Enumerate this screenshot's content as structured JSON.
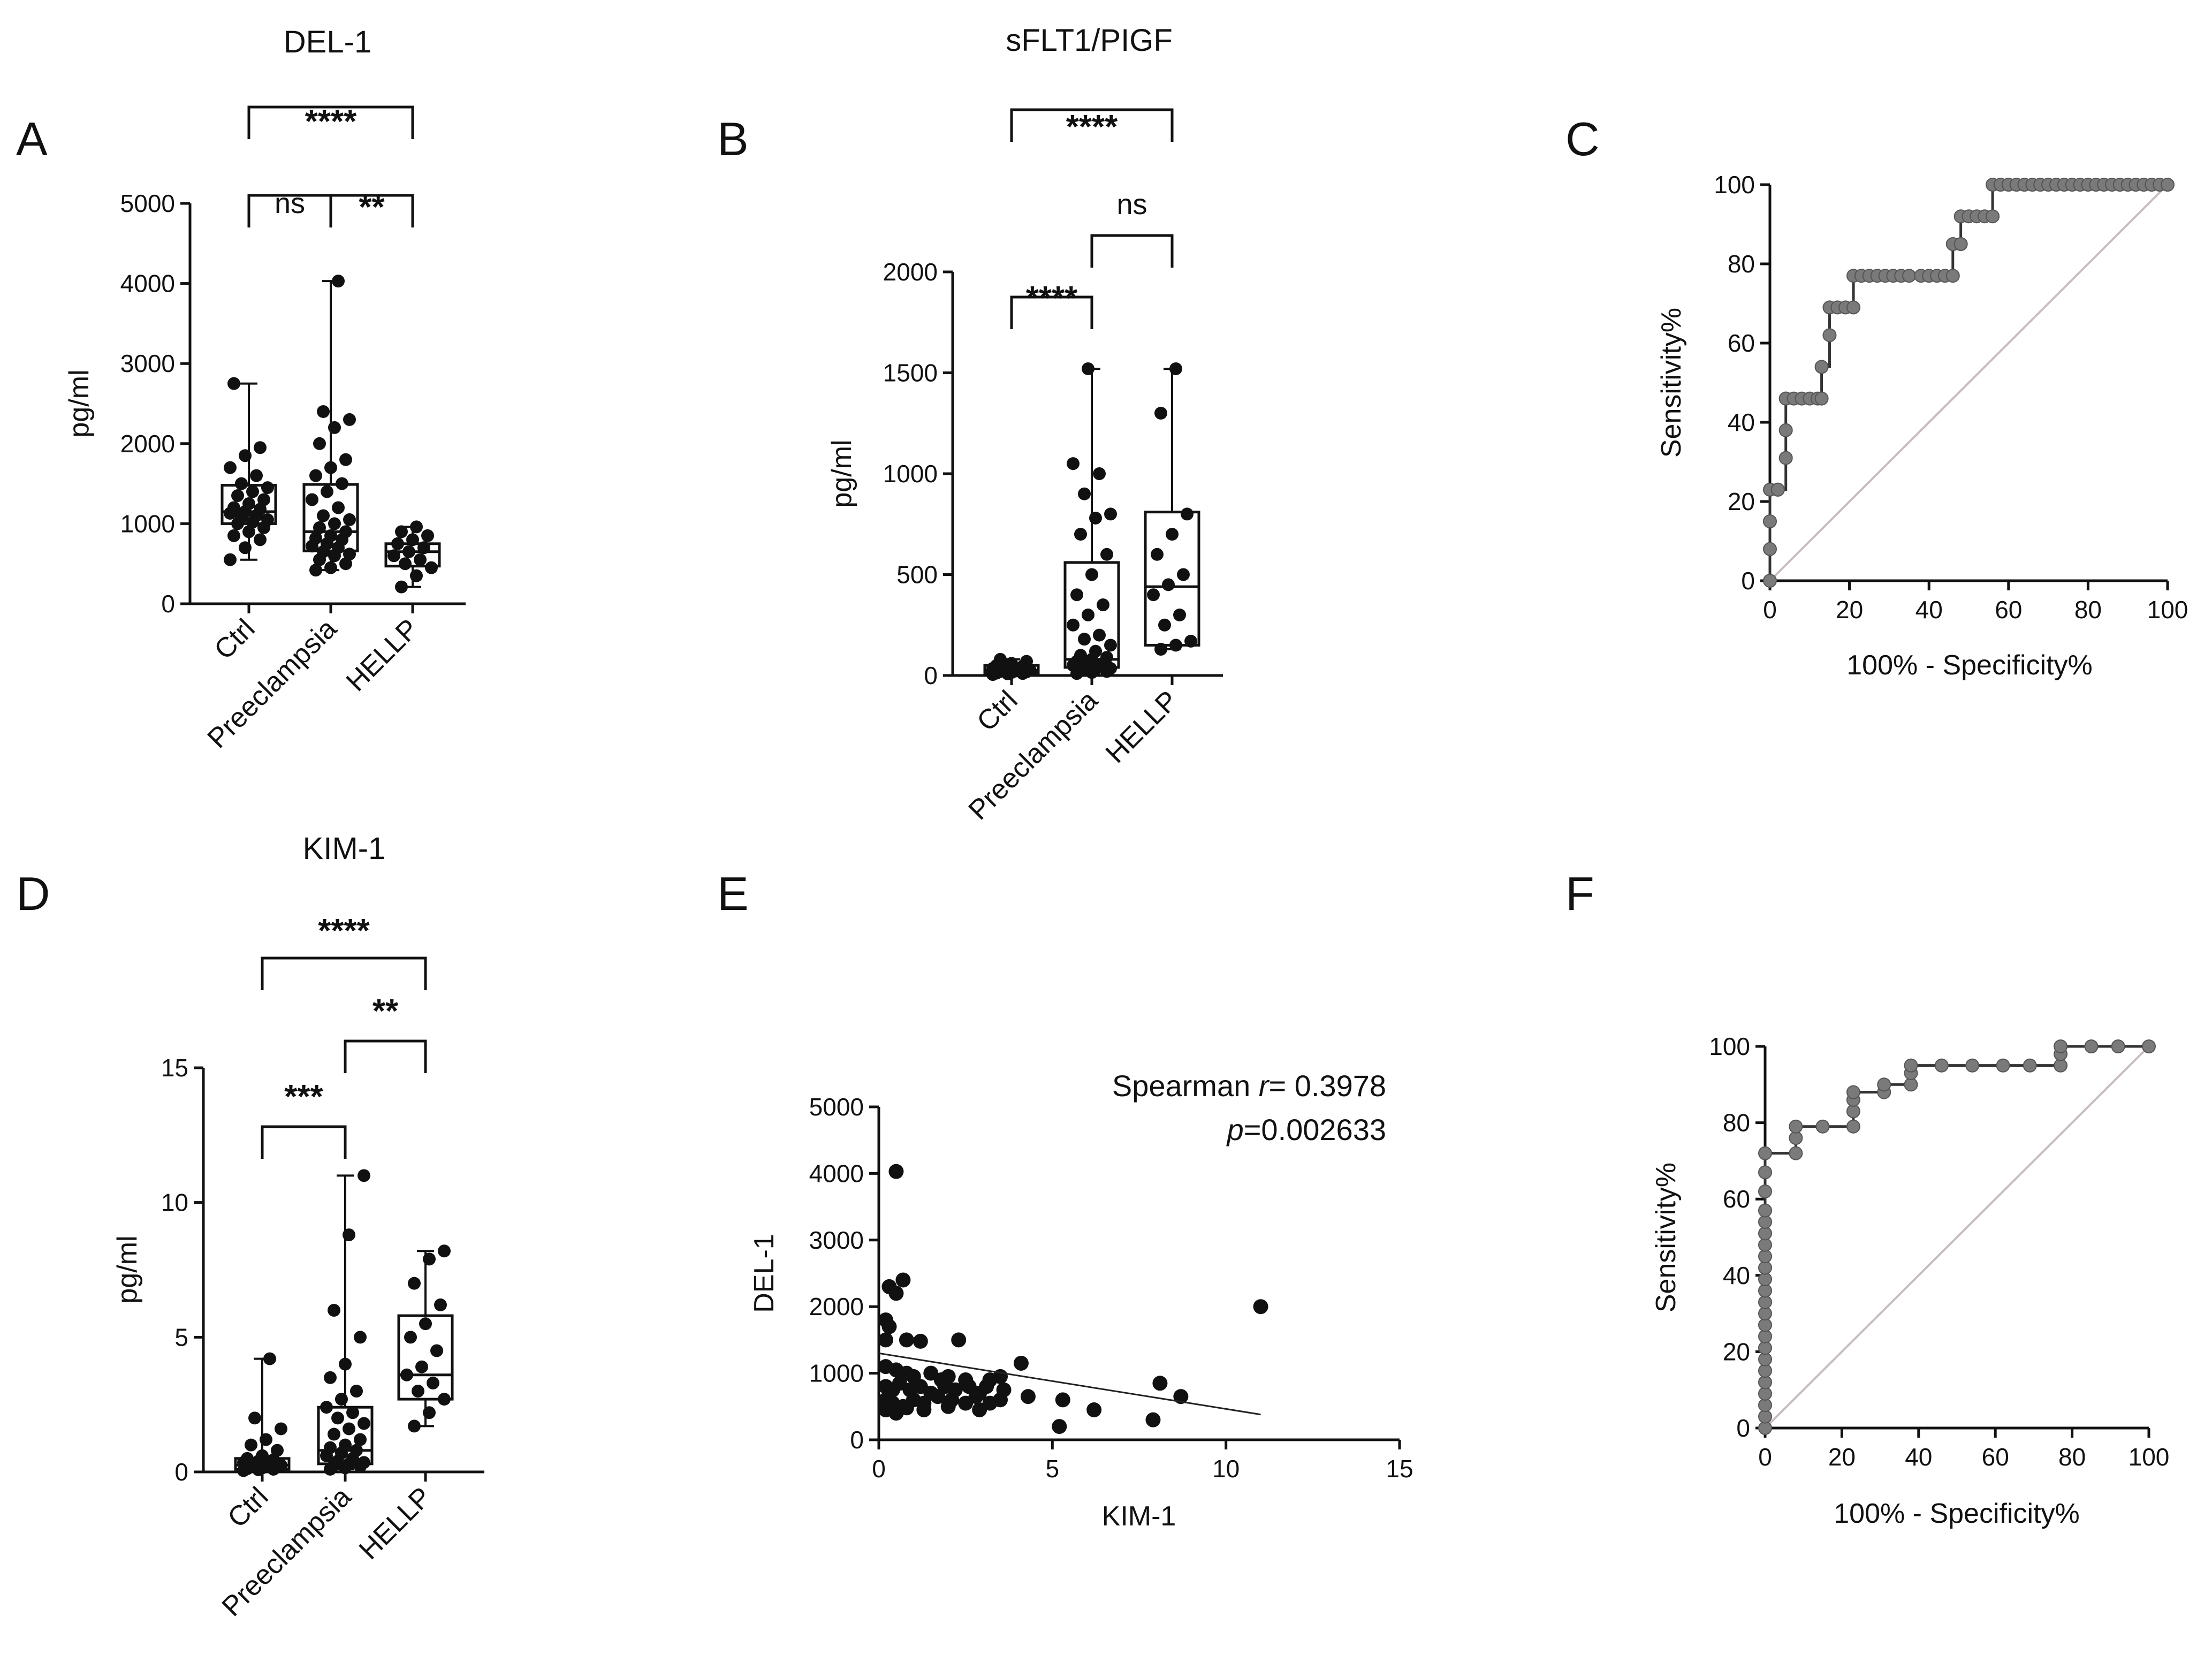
{
  "chart_data": [
    {
      "id": "A",
      "panel_label": "A",
      "type": "box",
      "title": "DEL-1",
      "ylabel": "pg/ml",
      "ylim": [
        0,
        5000
      ],
      "yticks": [
        "0",
        "1000",
        "2000",
        "3000",
        "4000",
        "5000"
      ],
      "categories": [
        "Ctrl",
        "Preeclampsia",
        "HELLP"
      ],
      "boxes": [
        {
          "min": 550,
          "q1": 1000,
          "median": 1150,
          "q3": 1480,
          "max": 2750
        },
        {
          "min": 420,
          "q1": 660,
          "median": 900,
          "q3": 1490,
          "max": 4030
        },
        {
          "min": 210,
          "q1": 470,
          "median": 650,
          "q3": 750,
          "max": 960
        }
      ],
      "points": [
        [
          550,
          700,
          800,
          850,
          900,
          950,
          1000,
          1020,
          1050,
          1080,
          1100,
          1130,
          1150,
          1180,
          1200,
          1250,
          1300,
          1350,
          1400,
          1450,
          1500,
          1600,
          1700,
          1850,
          1950,
          2750
        ],
        [
          420,
          450,
          500,
          550,
          600,
          620,
          650,
          700,
          720,
          750,
          800,
          820,
          850,
          900,
          950,
          1000,
          1050,
          1100,
          1200,
          1300,
          1400,
          1500,
          1600,
          1700,
          1800,
          2000,
          2200,
          2300,
          2400,
          4030
        ],
        [
          210,
          350,
          450,
          500,
          550,
          600,
          650,
          700,
          750,
          800,
          850,
          900,
          960
        ]
      ],
      "comparisons": [
        {
          "from": 0,
          "to": 2,
          "label": "****"
        },
        {
          "from": 0,
          "to": 1,
          "label": "ns"
        },
        {
          "from": 1,
          "to": 2,
          "label": "**"
        }
      ]
    },
    {
      "id": "B",
      "panel_label": "B",
      "type": "box",
      "title": "sFLT1/PIGF",
      "ylabel": "pg/ml",
      "ylim": [
        0,
        2000
      ],
      "yticks": [
        "0",
        "500",
        "1000",
        "1500",
        "2000"
      ],
      "categories": [
        "Ctrl",
        "Preeclampsia",
        "HELLP"
      ],
      "boxes": [
        {
          "min": 5,
          "q1": 10,
          "median": 25,
          "q3": 50,
          "max": 80
        },
        {
          "min": 10,
          "q1": 40,
          "median": 80,
          "q3": 560,
          "max": 1520
        },
        {
          "min": 130,
          "q1": 150,
          "median": 440,
          "q3": 810,
          "max": 1520
        }
      ],
      "points": [
        [
          5,
          8,
          10,
          12,
          15,
          18,
          20,
          22,
          25,
          28,
          30,
          35,
          40,
          45,
          50,
          60,
          70,
          80
        ],
        [
          10,
          15,
          20,
          25,
          30,
          35,
          40,
          45,
          50,
          55,
          60,
          70,
          80,
          90,
          100,
          120,
          150,
          180,
          200,
          250,
          300,
          350,
          400,
          500,
          600,
          700,
          780,
          800,
          900,
          1000,
          1050,
          1520
        ],
        [
          130,
          150,
          170,
          250,
          300,
          400,
          450,
          500,
          600,
          700,
          800,
          1300,
          1520
        ]
      ],
      "comparisons": [
        {
          "from": 0,
          "to": 2,
          "label": "****"
        },
        {
          "from": 1,
          "to": 2,
          "label": "ns"
        },
        {
          "from": 0,
          "to": 1,
          "label": "****"
        }
      ]
    },
    {
      "id": "C",
      "panel_label": "C",
      "type": "line",
      "xlabel": "100% - Specificity%",
      "ylabel": "Sensitivity%",
      "xlim": [
        0,
        100
      ],
      "ylim": [
        0,
        100
      ],
      "xticks": [
        "0",
        "20",
        "40",
        "60",
        "80",
        "100"
      ],
      "yticks": [
        "0",
        "20",
        "40",
        "60",
        "80",
        "100"
      ],
      "x": [
        0,
        0,
        0,
        0,
        2,
        2,
        4,
        4,
        4,
        4,
        6,
        8,
        10,
        12,
        13,
        13,
        15,
        15,
        17,
        19,
        21,
        21,
        23,
        25,
        27,
        29,
        31,
        33,
        35,
        38,
        40,
        42,
        44,
        46,
        46,
        48,
        48,
        50,
        52,
        54,
        56,
        56,
        58,
        60,
        62,
        64,
        66,
        68,
        70,
        72,
        74,
        76,
        78,
        80,
        82,
        84,
        86,
        88,
        90,
        92,
        94,
        96,
        98,
        100
      ],
      "y": [
        0,
        8,
        15,
        23,
        23,
        23,
        31,
        38,
        46,
        46,
        46,
        46,
        46,
        46,
        46,
        54,
        62,
        69,
        69,
        69,
        69,
        77,
        77,
        77,
        77,
        77,
        77,
        77,
        77,
        77,
        77,
        77,
        77,
        77,
        85,
        85,
        92,
        92,
        92,
        92,
        92,
        100,
        100,
        100,
        100,
        100,
        100,
        100,
        100,
        100,
        100,
        100,
        100,
        100,
        100,
        100,
        100,
        100,
        100,
        100,
        100,
        100,
        100,
        100
      ]
    },
    {
      "id": "D",
      "panel_label": "D",
      "type": "box",
      "title": "KIM-1",
      "ylabel": "pg/ml",
      "ylim": [
        0,
        15
      ],
      "yticks": [
        "0",
        "5",
        "10",
        "15"
      ],
      "categories": [
        "Ctrl",
        "Preeclampsia",
        "HELLP"
      ],
      "boxes": [
        {
          "min": 0.05,
          "q1": 0.1,
          "median": 0.25,
          "q3": 0.5,
          "max": 4.2
        },
        {
          "min": 0.1,
          "q1": 0.3,
          "median": 0.8,
          "q3": 2.4,
          "max": 11.0
        },
        {
          "min": 1.7,
          "q1": 2.7,
          "median": 3.6,
          "q3": 5.8,
          "max": 8.2
        }
      ],
      "points": [
        [
          0.05,
          0.08,
          0.1,
          0.12,
          0.15,
          0.18,
          0.2,
          0.22,
          0.25,
          0.28,
          0.3,
          0.35,
          0.4,
          0.45,
          0.5,
          0.6,
          0.8,
          1.0,
          1.2,
          1.6,
          2.0,
          4.2
        ],
        [
          0.1,
          0.15,
          0.2,
          0.25,
          0.3,
          0.35,
          0.4,
          0.5,
          0.6,
          0.7,
          0.8,
          0.9,
          1.0,
          1.2,
          1.4,
          1.6,
          1.8,
          2.0,
          2.2,
          2.4,
          2.7,
          3.0,
          3.5,
          4.0,
          5.0,
          6.0,
          8.8,
          11.0
        ],
        [
          1.7,
          2.2,
          2.7,
          3.0,
          3.3,
          3.6,
          3.9,
          4.5,
          5.0,
          5.5,
          6.2,
          7.0,
          7.9,
          8.2
        ]
      ],
      "comparisons": [
        {
          "from": 0,
          "to": 2,
          "label": "****"
        },
        {
          "from": 1,
          "to": 2,
          "label": "**"
        },
        {
          "from": 0,
          "to": 1,
          "label": "***"
        }
      ]
    },
    {
      "id": "E",
      "panel_label": "E",
      "type": "scatter",
      "xlabel": "KIM-1",
      "ylabel": "DEL-1",
      "xlim": [
        0,
        15
      ],
      "ylim": [
        0,
        5000
      ],
      "xticks": [
        "0",
        "5",
        "10",
        "15"
      ],
      "yticks": [
        "0",
        "1000",
        "2000",
        "3000",
        "4000",
        "5000"
      ],
      "annotation_line1_label": "Spearman ",
      "annotation_line1_symbol": "r",
      "annotation_line1_value": "= 0.3978",
      "annotation_line2_symbol": "p",
      "annotation_line2_value": "=0.002633",
      "points": [
        [
          0.5,
          4030
        ],
        [
          0.3,
          2300
        ],
        [
          0.7,
          2400
        ],
        [
          0.5,
          2200
        ],
        [
          0.2,
          1800
        ],
        [
          0.3,
          1700
        ],
        [
          0.2,
          1500
        ],
        [
          0.8,
          1500
        ],
        [
          1.2,
          1480
        ],
        [
          2.3,
          1500
        ],
        [
          4.1,
          1150
        ],
        [
          0.2,
          1100
        ],
        [
          0.5,
          1050
        ],
        [
          0.8,
          1000
        ],
        [
          1.0,
          950
        ],
        [
          1.5,
          1000
        ],
        [
          1.8,
          900
        ],
        [
          2.0,
          950
        ],
        [
          2.5,
          900
        ],
        [
          3.2,
          900
        ],
        [
          3.5,
          950
        ],
        [
          0.2,
          800
        ],
        [
          0.4,
          750
        ],
        [
          0.6,
          850
        ],
        [
          0.9,
          750
        ],
        [
          1.2,
          800
        ],
        [
          1.5,
          700
        ],
        [
          1.9,
          800
        ],
        [
          2.2,
          750
        ],
        [
          2.6,
          800
        ],
        [
          2.9,
          700
        ],
        [
          3.1,
          800
        ],
        [
          3.6,
          750
        ],
        [
          0.2,
          600
        ],
        [
          0.4,
          550
        ],
        [
          0.7,
          500
        ],
        [
          1.0,
          600
        ],
        [
          1.3,
          550
        ],
        [
          1.7,
          650
        ],
        [
          2.1,
          600
        ],
        [
          2.5,
          550
        ],
        [
          2.8,
          650
        ],
        [
          3.2,
          550
        ],
        [
          3.5,
          600
        ],
        [
          4.3,
          650
        ],
        [
          0.2,
          450
        ],
        [
          0.5,
          400
        ],
        [
          0.8,
          480
        ],
        [
          1.3,
          450
        ],
        [
          2.0,
          500
        ],
        [
          2.9,
          450
        ],
        [
          5.3,
          600
        ],
        [
          6.2,
          450
        ],
        [
          5.2,
          200
        ],
        [
          7.9,
          300
        ],
        [
          8.1,
          850
        ],
        [
          8.7,
          650
        ],
        [
          11.0,
          2000
        ]
      ],
      "fit": {
        "x": [
          0,
          11
        ],
        "y": [
          1300,
          380
        ]
      }
    },
    {
      "id": "F",
      "panel_label": "F",
      "type": "line",
      "xlabel": "100% - Specificity%",
      "ylabel": "Sensitivity%",
      "xlim": [
        0,
        100
      ],
      "ylim": [
        0,
        100
      ],
      "xticks": [
        "0",
        "20",
        "40",
        "60",
        "80",
        "100"
      ],
      "yticks": [
        "0",
        "20",
        "40",
        "60",
        "80",
        "100"
      ],
      "x": [
        0,
        0,
        0,
        0,
        0,
        0,
        0,
        0,
        0,
        0,
        0,
        0,
        0,
        0,
        0,
        0,
        0,
        0,
        0,
        0,
        0,
        0,
        0,
        8,
        8,
        8,
        15,
        23,
        23,
        23,
        23,
        31,
        31,
        38,
        38,
        38,
        46,
        54,
        62,
        69,
        77,
        77,
        77,
        85,
        92,
        100
      ],
      "y": [
        0,
        3,
        6,
        9,
        12,
        15,
        18,
        21,
        24,
        27,
        30,
        33,
        36,
        39,
        42,
        45,
        48,
        51,
        54,
        57,
        62,
        67,
        72,
        72,
        76,
        79,
        79,
        79,
        83,
        86,
        88,
        88,
        90,
        90,
        93,
        95,
        95,
        95,
        95,
        95,
        95,
        98,
        100,
        100,
        100,
        100
      ]
    }
  ]
}
